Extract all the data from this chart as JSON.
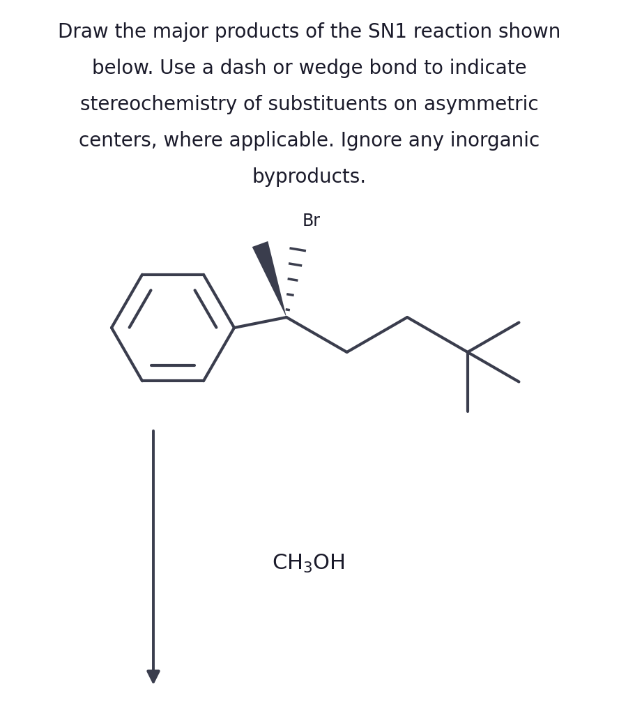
{
  "title_lines": [
    "Draw the major products of the SN1 reaction shown",
    "below. Use a dash or wedge bond to indicate",
    "stereochemistry of substituents on asymmetric",
    "centers, where applicable. Ignore any inorganic",
    "byproducts."
  ],
  "title_fontsize": 20,
  "title_color": "#1a1a2a",
  "background_color": "#ffffff",
  "molecule_color": "#3a3d4d",
  "arrow_color": "#3a3d4d",
  "line_width": 3.0
}
